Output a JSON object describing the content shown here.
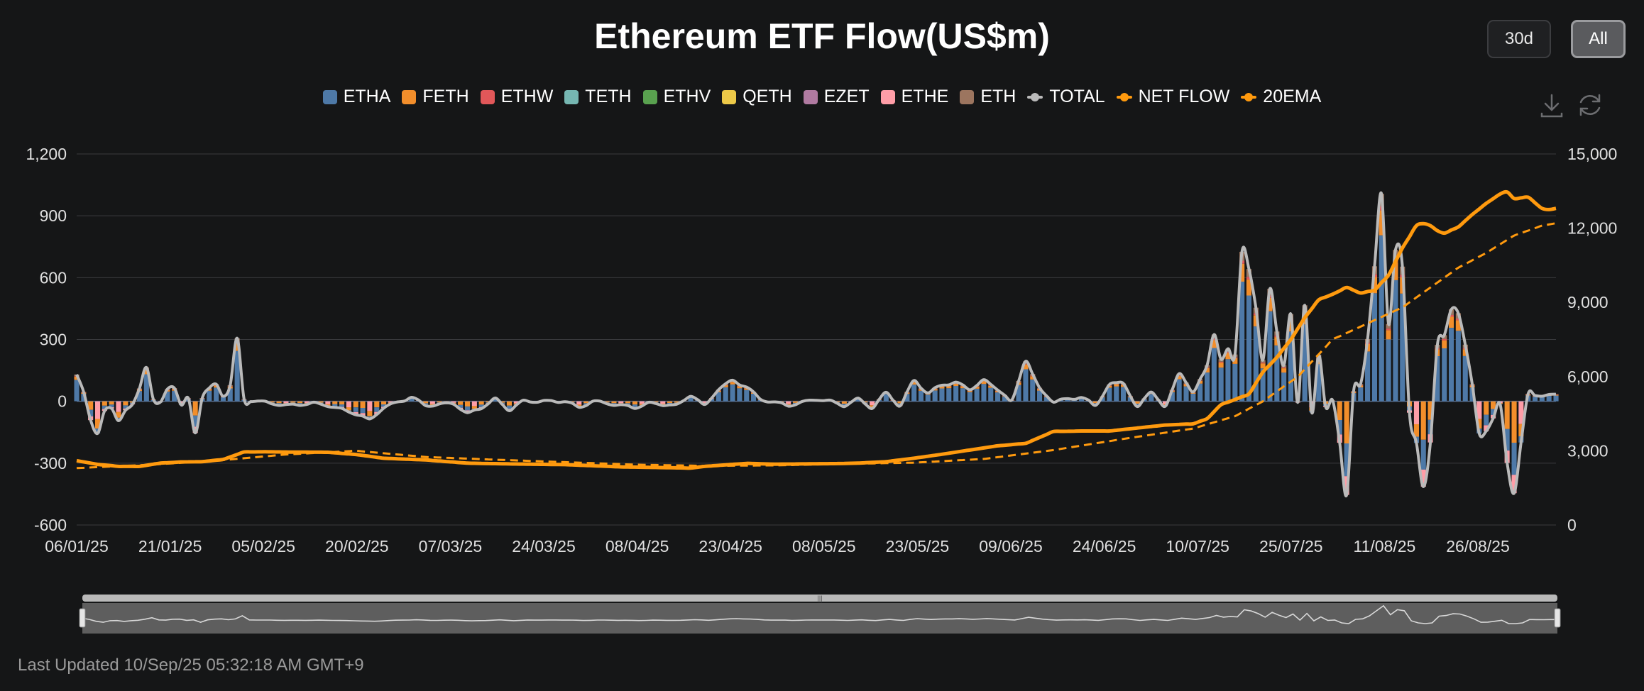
{
  "title": "Ethereum ETF Flow(US$m)",
  "buttons": {
    "range_30d": "30d",
    "range_all": "All"
  },
  "toolbar": {
    "download_icon": "download-icon",
    "refresh_icon": "refresh-icon"
  },
  "footer": {
    "last_updated": "Last Updated 10/Sep/25 05:32:18 AM GMT+9"
  },
  "legend": [
    {
      "name": "ETHA",
      "color": "#4e79a7",
      "kind": "bar"
    },
    {
      "name": "FETH",
      "color": "#f28e2b",
      "kind": "bar"
    },
    {
      "name": "ETHW",
      "color": "#e15759",
      "kind": "bar"
    },
    {
      "name": "TETH",
      "color": "#76b7b2",
      "kind": "bar"
    },
    {
      "name": "ETHV",
      "color": "#59a14f",
      "kind": "bar"
    },
    {
      "name": "QETH",
      "color": "#edc948",
      "kind": "bar"
    },
    {
      "name": "EZET",
      "color": "#b07aa1",
      "kind": "bar"
    },
    {
      "name": "ETHE",
      "color": "#ff9da7",
      "kind": "bar"
    },
    {
      "name": "ETH",
      "color": "#9c755f",
      "kind": "bar"
    },
    {
      "name": "TOTAL",
      "color": "#bababa",
      "kind": "line"
    },
    {
      "name": "NET FLOW",
      "color": "#ff9a0e",
      "kind": "line"
    },
    {
      "name": "20EMA",
      "color": "#ff9a0e",
      "kind": "line"
    }
  ],
  "chart_data": {
    "type": "bar",
    "title": "Ethereum ETF Flow(US$m)",
    "y_left": {
      "min": -600,
      "max": 1200,
      "ticks": [
        -600,
        -300,
        0,
        300,
        600,
        900,
        1200
      ],
      "tick_labels": [
        "-600",
        "-300",
        "0",
        "300",
        "600",
        "900",
        "1,200"
      ]
    },
    "y_right": {
      "min": 0,
      "max": 15000,
      "ticks": [
        0,
        3000,
        6000,
        9000,
        12000,
        15000
      ],
      "tick_labels": [
        "0",
        "3,000",
        "6,000",
        "9,000",
        "12,000",
        "15,000"
      ]
    },
    "x_tick_labels": [
      "06/01/25",
      "21/01/25",
      "05/02/25",
      "20/02/25",
      "07/03/25",
      "24/03/25",
      "08/04/25",
      "23/04/25",
      "08/05/25",
      "23/05/25",
      "09/06/25",
      "24/06/25",
      "10/07/25",
      "25/07/25",
      "11/08/25",
      "26/08/25"
    ],
    "grid": true,
    "legend_position": "top-center",
    "stack_order": [
      "ETHA",
      "FETH",
      "ETHW",
      "TETH",
      "ETHV",
      "QETH",
      "EZET",
      "ETHE",
      "ETH"
    ],
    "series_colors": {
      "ETHA": "#4e79a7",
      "FETH": "#f28e2b",
      "ETHW": "#e15759",
      "TETH": "#76b7b2",
      "ETHV": "#59a14f",
      "QETH": "#edc948",
      "EZET": "#b07aa1",
      "ETHE": "#ff9da7",
      "ETH": "#9c755f",
      "TOTAL": "#bababa",
      "NET FLOW": "#ff9a0e",
      "20EMA": "#ff9a0e"
    },
    "total_anchors": [
      [
        0,
        130
      ],
      [
        1,
        40
      ],
      [
        2,
        -90
      ],
      [
        3,
        -150
      ],
      [
        4,
        -50
      ],
      [
        5,
        -40
      ],
      [
        6,
        -90
      ],
      [
        7,
        -40
      ],
      [
        8,
        -20
      ],
      [
        9,
        60
      ],
      [
        10,
        170
      ],
      [
        11,
        10
      ],
      [
        12,
        -10
      ],
      [
        13,
        60
      ],
      [
        14,
        70
      ],
      [
        15,
        -20
      ],
      [
        16,
        10
      ],
      [
        17,
        -150
      ],
      [
        18,
        20
      ],
      [
        19,
        60
      ],
      [
        20,
        80
      ],
      [
        21,
        30
      ],
      [
        22,
        80
      ],
      [
        23,
        300
      ],
      [
        24,
        10
      ],
      [
        26,
        0
      ],
      [
        30,
        -20
      ],
      [
        34,
        -10
      ],
      [
        36,
        -20
      ],
      [
        40,
        -60
      ],
      [
        42,
        -90
      ],
      [
        44,
        -30
      ],
      [
        48,
        20
      ],
      [
        50,
        -20
      ],
      [
        54,
        -10
      ],
      [
        56,
        -60
      ],
      [
        58,
        -30
      ],
      [
        60,
        10
      ],
      [
        62,
        -40
      ],
      [
        64,
        0
      ],
      [
        70,
        0
      ],
      [
        72,
        -30
      ],
      [
        74,
        0
      ],
      [
        80,
        -30
      ],
      [
        82,
        -10
      ],
      [
        86,
        -20
      ],
      [
        88,
        30
      ],
      [
        90,
        -20
      ],
      [
        92,
        60
      ],
      [
        94,
        100
      ],
      [
        96,
        70
      ],
      [
        98,
        10
      ],
      [
        102,
        -20
      ],
      [
        106,
        10
      ],
      [
        108,
        0
      ],
      [
        110,
        -20
      ],
      [
        112,
        10
      ],
      [
        114,
        -30
      ],
      [
        116,
        40
      ],
      [
        118,
        -20
      ],
      [
        120,
        100
      ],
      [
        122,
        40
      ],
      [
        124,
        80
      ],
      [
        126,
        90
      ],
      [
        128,
        60
      ],
      [
        130,
        100
      ],
      [
        132,
        60
      ],
      [
        134,
        0
      ],
      [
        136,
        200
      ],
      [
        138,
        60
      ],
      [
        140,
        0
      ],
      [
        144,
        20
      ],
      [
        146,
        -20
      ],
      [
        148,
        80
      ],
      [
        150,
        90
      ],
      [
        152,
        -30
      ],
      [
        154,
        50
      ],
      [
        156,
        -30
      ],
      [
        158,
        140
      ],
      [
        160,
        40
      ],
      [
        162,
        180
      ],
      [
        163,
        320
      ],
      [
        164,
        200
      ],
      [
        165,
        260
      ],
      [
        166,
        230
      ],
      [
        167,
        720
      ],
      [
        168,
        640
      ],
      [
        169,
        460
      ],
      [
        170,
        200
      ],
      [
        171,
        540
      ],
      [
        172,
        340
      ],
      [
        173,
        180
      ],
      [
        174,
        420
      ],
      [
        175,
        -10
      ],
      [
        176,
        470
      ],
      [
        177,
        -50
      ],
      [
        178,
        220
      ],
      [
        179,
        -30
      ],
      [
        180,
        10
      ],
      [
        181,
        -200
      ],
      [
        182,
        -460
      ],
      [
        183,
        50
      ],
      [
        184,
        90
      ],
      [
        185,
        300
      ],
      [
        186,
        650
      ],
      [
        187,
        1010
      ],
      [
        188,
        380
      ],
      [
        189,
        730
      ],
      [
        190,
        650
      ],
      [
        191,
        -50
      ],
      [
        192,
        -200
      ],
      [
        193,
        -420
      ],
      [
        194,
        -200
      ],
      [
        195,
        280
      ],
      [
        196,
        320
      ],
      [
        197,
        440
      ],
      [
        198,
        430
      ],
      [
        199,
        280
      ],
      [
        200,
        80
      ],
      [
        201,
        -160
      ],
      [
        202,
        -140
      ],
      [
        203,
        -80
      ],
      [
        204,
        -20
      ],
      [
        205,
        -300
      ],
      [
        206,
        -440
      ],
      [
        207,
        -200
      ],
      [
        208,
        30
      ]
    ],
    "netflow_anchors": [
      [
        0,
        2600
      ],
      [
        3,
        2450
      ],
      [
        6,
        2370
      ],
      [
        9,
        2370
      ],
      [
        12,
        2500
      ],
      [
        15,
        2550
      ],
      [
        18,
        2560
      ],
      [
        21,
        2650
      ],
      [
        24,
        2950
      ],
      [
        27,
        2960
      ],
      [
        30,
        2950
      ],
      [
        36,
        2940
      ],
      [
        40,
        2850
      ],
      [
        44,
        2700
      ],
      [
        50,
        2630
      ],
      [
        56,
        2500
      ],
      [
        62,
        2470
      ],
      [
        70,
        2440
      ],
      [
        78,
        2350
      ],
      [
        84,
        2320
      ],
      [
        88,
        2300
      ],
      [
        90,
        2370
      ],
      [
        96,
        2490
      ],
      [
        100,
        2460
      ],
      [
        108,
        2480
      ],
      [
        112,
        2500
      ],
      [
        116,
        2560
      ],
      [
        120,
        2700
      ],
      [
        124,
        2860
      ],
      [
        128,
        3030
      ],
      [
        132,
        3200
      ],
      [
        136,
        3300
      ],
      [
        140,
        3780
      ],
      [
        144,
        3800
      ],
      [
        148,
        3800
      ],
      [
        152,
        3920
      ],
      [
        156,
        4040
      ],
      [
        160,
        4090
      ],
      [
        162,
        4300
      ],
      [
        164,
        4860
      ],
      [
        166,
        5070
      ],
      [
        168,
        5300
      ],
      [
        170,
        6180
      ],
      [
        172,
        6780
      ],
      [
        174,
        7500
      ],
      [
        176,
        8380
      ],
      [
        178,
        9100
      ],
      [
        180,
        9330
      ],
      [
        182,
        9600
      ],
      [
        184,
        9380
      ],
      [
        186,
        9500
      ],
      [
        188,
        10100
      ],
      [
        190,
        11200
      ],
      [
        191,
        11650
      ],
      [
        192,
        12100
      ],
      [
        193,
        12180
      ],
      [
        194,
        12100
      ],
      [
        195,
        11900
      ],
      [
        196,
        11800
      ],
      [
        198,
        12050
      ],
      [
        200,
        12550
      ],
      [
        202,
        13000
      ],
      [
        204,
        13380
      ],
      [
        205,
        13460
      ],
      [
        206,
        13200
      ],
      [
        208,
        13250
      ],
      [
        210,
        12800
      ],
      [
        211,
        12750
      ],
      [
        212,
        12800
      ]
    ],
    "ema_anchors": [
      [
        0,
        2300
      ],
      [
        10,
        2430
      ],
      [
        20,
        2600
      ],
      [
        30,
        2850
      ],
      [
        40,
        3000
      ],
      [
        50,
        2750
      ],
      [
        60,
        2640
      ],
      [
        70,
        2540
      ],
      [
        80,
        2440
      ],
      [
        90,
        2390
      ],
      [
        100,
        2410
      ],
      [
        110,
        2470
      ],
      [
        120,
        2520
      ],
      [
        130,
        2670
      ],
      [
        140,
        3030
      ],
      [
        150,
        3480
      ],
      [
        160,
        3900
      ],
      [
        166,
        4400
      ],
      [
        170,
        5000
      ],
      [
        175,
        6000
      ],
      [
        180,
        7500
      ],
      [
        185,
        8150
      ],
      [
        190,
        8800
      ],
      [
        194,
        9600
      ],
      [
        198,
        10400
      ],
      [
        202,
        11000
      ],
      [
        206,
        11700
      ],
      [
        210,
        12100
      ],
      [
        212,
        12200
      ]
    ]
  }
}
